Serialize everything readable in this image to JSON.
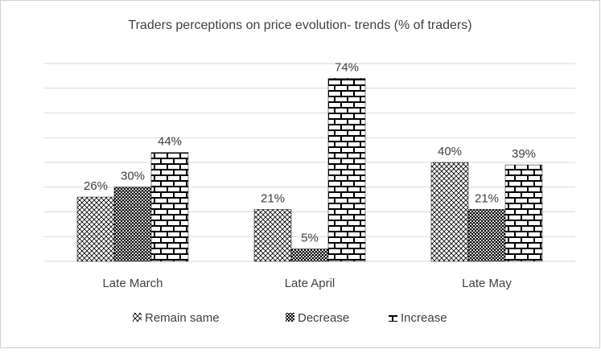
{
  "chart_data": {
    "type": "bar",
    "title": "Traders perceptions on price evolution- trends (% of traders)",
    "categories": [
      "Late March",
      "Late April",
      "Late May"
    ],
    "series": [
      {
        "name": "Remain same",
        "color": "#000000",
        "values": [
          26,
          21,
          40
        ],
        "value_labels": [
          "26%",
          "21%",
          "40%"
        ]
      },
      {
        "name": "Decrease",
        "color": "#000000",
        "values": [
          30,
          5,
          21
        ],
        "value_labels": [
          "30%",
          "5%",
          "21%"
        ]
      },
      {
        "name": "Increase",
        "color": "#000000",
        "values": [
          44,
          74,
          39
        ],
        "value_labels": [
          "44%",
          "74%",
          "39%"
        ]
      }
    ],
    "ylim": [
      0,
      80
    ],
    "yticks": [
      0,
      10,
      20,
      30,
      40,
      50,
      60,
      70,
      80
    ],
    "grid": true,
    "legend": "bottom"
  }
}
